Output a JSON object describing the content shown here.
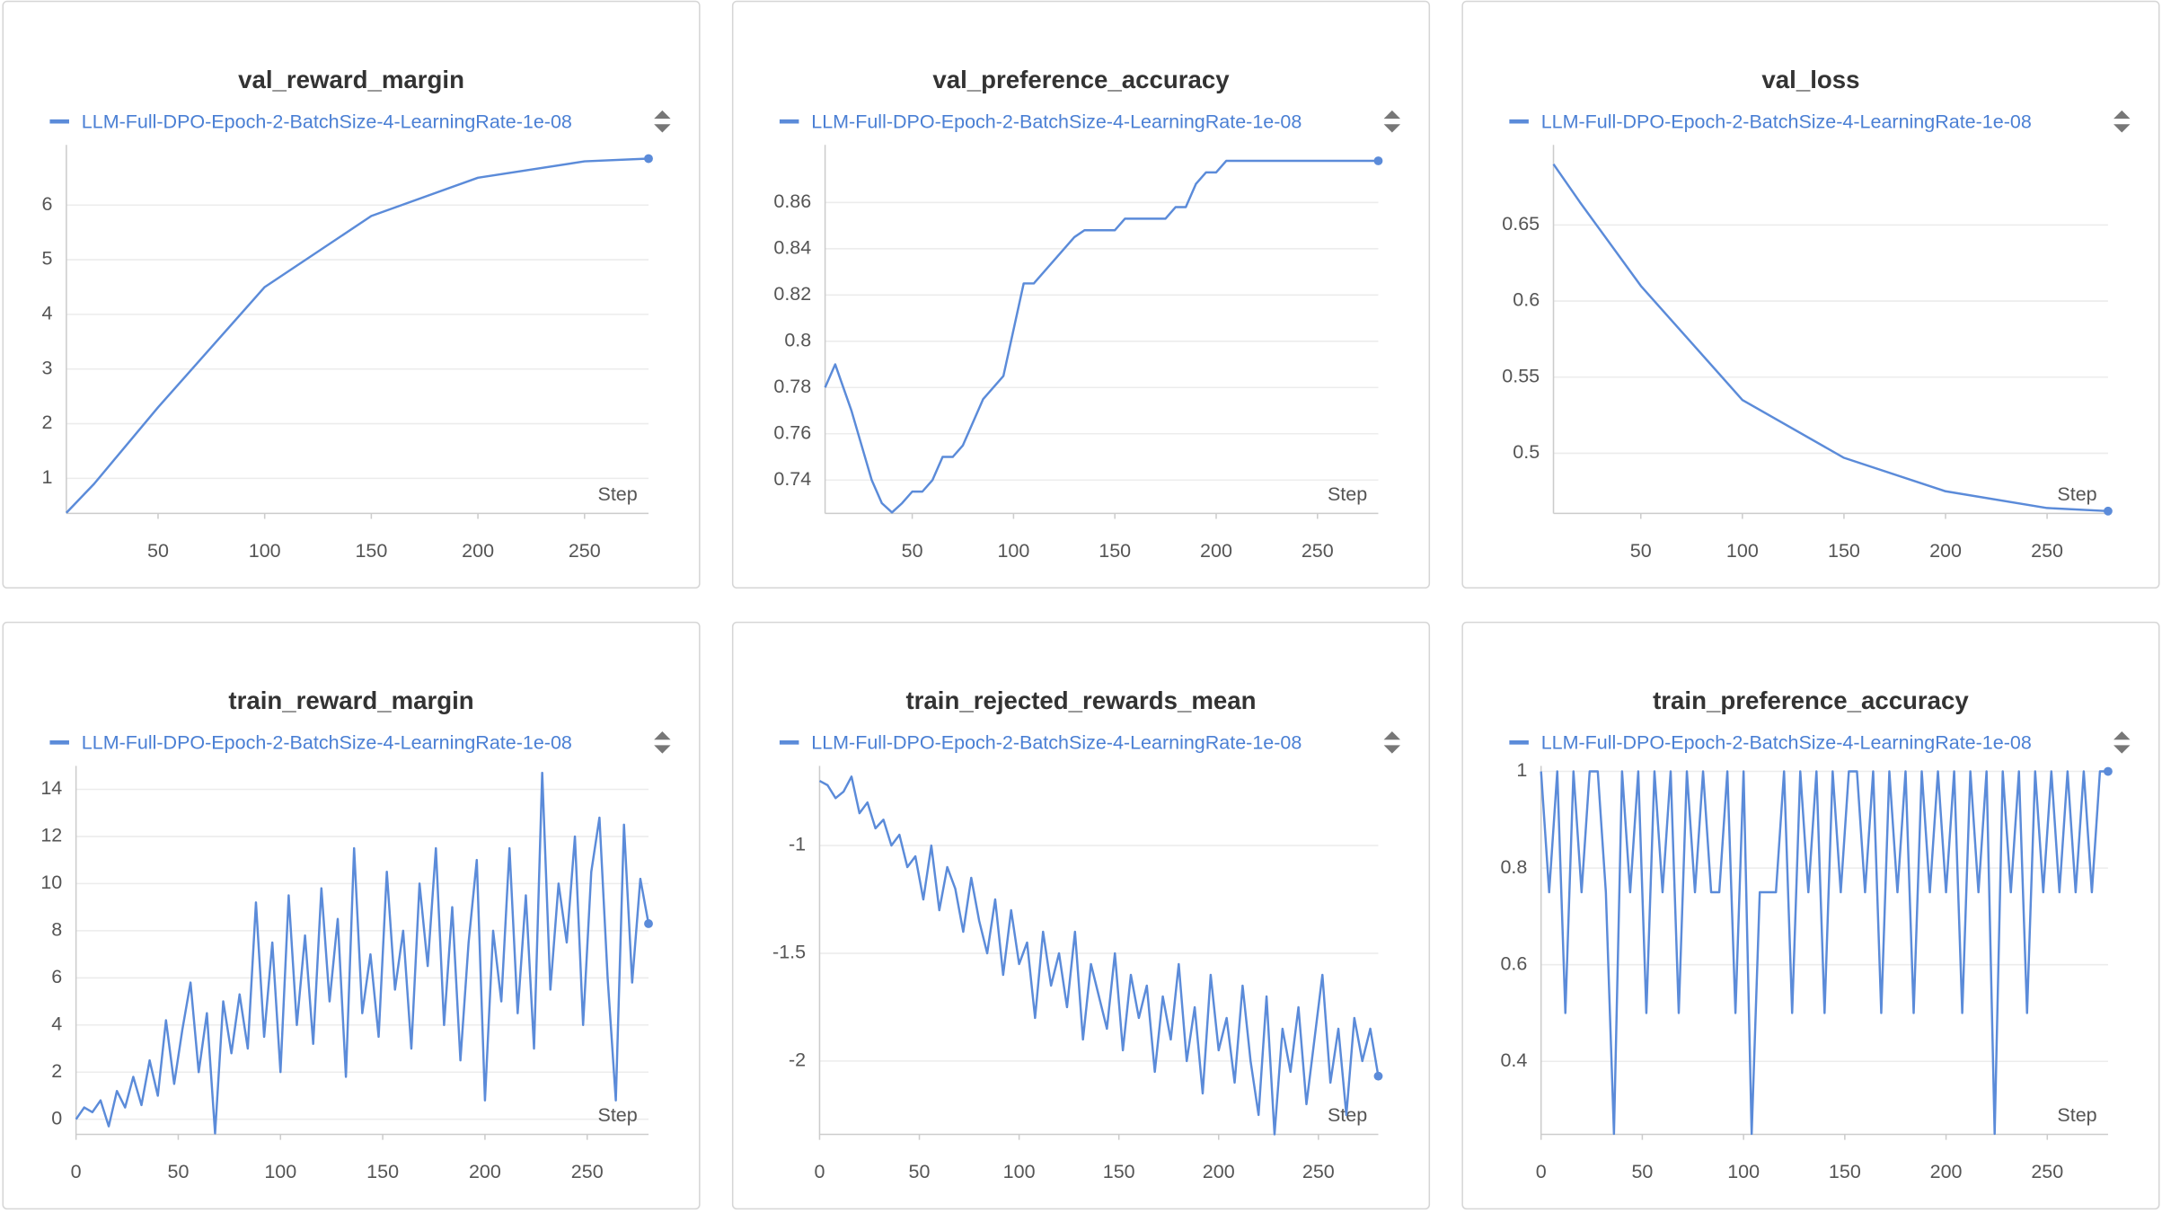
{
  "chart_data": [
    {
      "type": "line",
      "title": "val_reward_margin",
      "x_label": "Step",
      "x": [
        7,
        20,
        50,
        100,
        150,
        200,
        250,
        280
      ],
      "series": [
        {
          "name": "LLM-Full-DPO-Epoch-2-BatchSize-4-LearningRate-1e-08",
          "color": "#5b8bd9",
          "values": [
            0.37,
            0.9,
            2.3,
            4.5,
            5.8,
            6.5,
            6.8,
            6.85
          ]
        }
      ],
      "xlim": [
        7,
        280
      ],
      "ylim": [
        0.36,
        7.0
      ],
      "xticks": [
        50,
        100,
        150,
        200,
        250
      ],
      "yticks": [
        1,
        2,
        3,
        4,
        5,
        6
      ],
      "grid": true
    },
    {
      "type": "line",
      "title": "val_preference_accuracy",
      "x_label": "Step",
      "x": [
        7,
        12,
        20,
        30,
        35,
        40,
        45,
        50,
        55,
        60,
        65,
        70,
        75,
        85,
        95,
        105,
        110,
        120,
        130,
        135,
        150,
        155,
        175,
        180,
        185,
        190,
        195,
        200,
        205,
        280
      ],
      "series": [
        {
          "name": "LLM-Full-DPO-Epoch-2-BatchSize-4-LearningRate-1e-08",
          "color": "#5b8bd9",
          "values": [
            0.78,
            0.79,
            0.77,
            0.74,
            0.73,
            0.726,
            0.73,
            0.735,
            0.735,
            0.74,
            0.75,
            0.75,
            0.755,
            0.775,
            0.785,
            0.825,
            0.825,
            0.835,
            0.845,
            0.848,
            0.848,
            0.853,
            0.853,
            0.858,
            0.858,
            0.868,
            0.873,
            0.873,
            0.878,
            0.878
          ]
        }
      ],
      "xlim": [
        7,
        280
      ],
      "ylim": [
        0.7256,
        0.8825
      ],
      "xticks": [
        50,
        100,
        150,
        200,
        250
      ],
      "yticks": [
        0.74,
        0.76,
        0.78,
        0.8,
        0.82,
        0.84,
        0.86
      ],
      "grid": true
    },
    {
      "type": "line",
      "title": "val_loss",
      "x_label": "Step",
      "x": [
        7,
        20,
        50,
        100,
        150,
        200,
        250,
        280
      ],
      "series": [
        {
          "name": "LLM-Full-DPO-Epoch-2-BatchSize-4-LearningRate-1e-08",
          "color": "#5b8bd9",
          "values": [
            0.69,
            0.665,
            0.61,
            0.535,
            0.497,
            0.475,
            0.464,
            0.462
          ]
        }
      ],
      "xlim": [
        7,
        280
      ],
      "ylim": [
        0.4605,
        0.699
      ],
      "xticks": [
        50,
        100,
        150,
        200,
        250
      ],
      "yticks": [
        0.5,
        0.55,
        0.6,
        0.65
      ],
      "grid": true
    },
    {
      "type": "line",
      "title": "train_reward_margin",
      "x_label": "Step",
      "x": [
        0,
        4,
        8,
        12,
        16,
        20,
        24,
        28,
        32,
        36,
        40,
        44,
        48,
        52,
        56,
        60,
        64,
        68,
        72,
        76,
        80,
        84,
        88,
        92,
        96,
        100,
        104,
        108,
        112,
        116,
        120,
        124,
        128,
        132,
        136,
        140,
        144,
        148,
        152,
        156,
        160,
        164,
        168,
        172,
        176,
        180,
        184,
        188,
        192,
        196,
        200,
        204,
        208,
        212,
        216,
        220,
        224,
        228,
        232,
        236,
        240,
        244,
        248,
        252,
        256,
        260,
        264,
        268,
        272,
        276,
        280
      ],
      "series": [
        {
          "name": "LLM-Full-DPO-Epoch-2-BatchSize-4-LearningRate-1e-08",
          "color": "#5b8bd9",
          "values": [
            0,
            0.5,
            0.3,
            0.8,
            -0.3,
            1.2,
            0.5,
            1.8,
            0.6,
            2.5,
            1.0,
            4.2,
            1.5,
            3.8,
            5.8,
            2.0,
            4.5,
            -0.6,
            5.0,
            2.8,
            5.3,
            3.0,
            9.2,
            3.5,
            7.5,
            2.0,
            9.5,
            4.0,
            7.8,
            3.2,
            9.8,
            5.0,
            8.5,
            1.8,
            11.5,
            4.5,
            7.0,
            3.5,
            10.5,
            5.5,
            8.0,
            3.0,
            10.0,
            6.5,
            11.5,
            4.0,
            9.0,
            2.5,
            7.5,
            11.0,
            0.8,
            8.0,
            5.0,
            11.5,
            4.5,
            9.5,
            3.0,
            14.7,
            5.5,
            10.0,
            7.5,
            12.0,
            4.0,
            10.5,
            12.8,
            6.0,
            0.8,
            12.5,
            5.8,
            10.2,
            8.3
          ]
        }
      ],
      "xlim": [
        0,
        280
      ],
      "ylim": [
        -0.64,
        14.76
      ],
      "xticks": [
        0,
        50,
        100,
        150,
        200,
        250
      ],
      "yticks": [
        0,
        2,
        4,
        6,
        8,
        10,
        12,
        14
      ],
      "grid": true
    },
    {
      "type": "line",
      "title": "train_rejected_rewards_mean",
      "x_label": "Step",
      "x": [
        0,
        4,
        8,
        12,
        16,
        20,
        24,
        28,
        32,
        36,
        40,
        44,
        48,
        52,
        56,
        60,
        64,
        68,
        72,
        76,
        80,
        84,
        88,
        92,
        96,
        100,
        104,
        108,
        112,
        116,
        120,
        124,
        128,
        132,
        136,
        140,
        144,
        148,
        152,
        156,
        160,
        164,
        168,
        172,
        176,
        180,
        184,
        188,
        192,
        196,
        200,
        204,
        208,
        212,
        216,
        220,
        224,
        228,
        232,
        236,
        240,
        244,
        248,
        252,
        256,
        260,
        264,
        268,
        272,
        276,
        280
      ],
      "series": [
        {
          "name": "LLM-Full-DPO-Epoch-2-BatchSize-4-LearningRate-1e-08",
          "color": "#5b8bd9",
          "values": [
            -0.7,
            -0.72,
            -0.78,
            -0.75,
            -0.68,
            -0.85,
            -0.8,
            -0.92,
            -0.88,
            -1.0,
            -0.95,
            -1.1,
            -1.05,
            -1.25,
            -1.0,
            -1.3,
            -1.1,
            -1.2,
            -1.4,
            -1.15,
            -1.35,
            -1.5,
            -1.25,
            -1.6,
            -1.3,
            -1.55,
            -1.45,
            -1.8,
            -1.4,
            -1.65,
            -1.5,
            -1.75,
            -1.4,
            -1.9,
            -1.55,
            -1.7,
            -1.85,
            -1.5,
            -1.95,
            -1.6,
            -1.8,
            -1.65,
            -2.05,
            -1.7,
            -1.9,
            -1.55,
            -2.0,
            -1.75,
            -2.15,
            -1.6,
            -1.95,
            -1.8,
            -2.1,
            -1.65,
            -2.0,
            -2.25,
            -1.7,
            -2.34,
            -1.85,
            -2.05,
            -1.75,
            -2.2,
            -1.9,
            -1.6,
            -2.1,
            -1.85,
            -2.25,
            -1.8,
            -2.0,
            -1.85,
            -2.07
          ]
        }
      ],
      "xlim": [
        0,
        280
      ],
      "ylim": [
        -2.34,
        -0.656
      ],
      "xticks": [
        0,
        50,
        100,
        150,
        200,
        250
      ],
      "yticks": [
        -2,
        -1.5,
        -1
      ],
      "grid": true
    },
    {
      "type": "line",
      "title": "train_preference_accuracy",
      "x_label": "Step",
      "x": [
        0,
        4,
        8,
        12,
        16,
        20,
        24,
        28,
        32,
        36,
        40,
        44,
        48,
        52,
        56,
        60,
        64,
        68,
        72,
        76,
        80,
        84,
        88,
        92,
        96,
        100,
        104,
        108,
        112,
        116,
        120,
        124,
        128,
        132,
        136,
        140,
        144,
        148,
        152,
        156,
        160,
        164,
        168,
        172,
        176,
        180,
        184,
        188,
        192,
        196,
        200,
        204,
        208,
        212,
        216,
        220,
        224,
        228,
        232,
        236,
        240,
        244,
        248,
        252,
        256,
        260,
        264,
        268,
        272,
        276,
        280
      ],
      "series": [
        {
          "name": "LLM-Full-DPO-Epoch-2-BatchSize-4-LearningRate-1e-08",
          "color": "#5b8bd9",
          "values": [
            1,
            0.75,
            1,
            0.5,
            1,
            0.75,
            1,
            1,
            0.75,
            0.25,
            1,
            0.75,
            1,
            0.5,
            1,
            0.75,
            1,
            0.5,
            1,
            0.75,
            1,
            0.75,
            0.75,
            1,
            0.5,
            1,
            0.25,
            0.75,
            0.75,
            0.75,
            1,
            0.5,
            1,
            0.75,
            1,
            0.5,
            1,
            0.75,
            1,
            1,
            0.75,
            1,
            0.5,
            1,
            0.75,
            1,
            0.5,
            1,
            0.75,
            1,
            0.75,
            1,
            0.5,
            1,
            0.75,
            1,
            0.25,
            1,
            0.75,
            1,
            0.5,
            1,
            0.75,
            1,
            0.75,
            1,
            0.75,
            1,
            0.75,
            1,
            1
          ]
        }
      ],
      "xlim": [
        0,
        280
      ],
      "ylim": [
        0.249,
        1
      ],
      "xticks": [
        0,
        50,
        100,
        150,
        200,
        250
      ],
      "yticks": [
        0.4,
        0.6,
        0.8,
        1
      ],
      "grid": true
    }
  ]
}
